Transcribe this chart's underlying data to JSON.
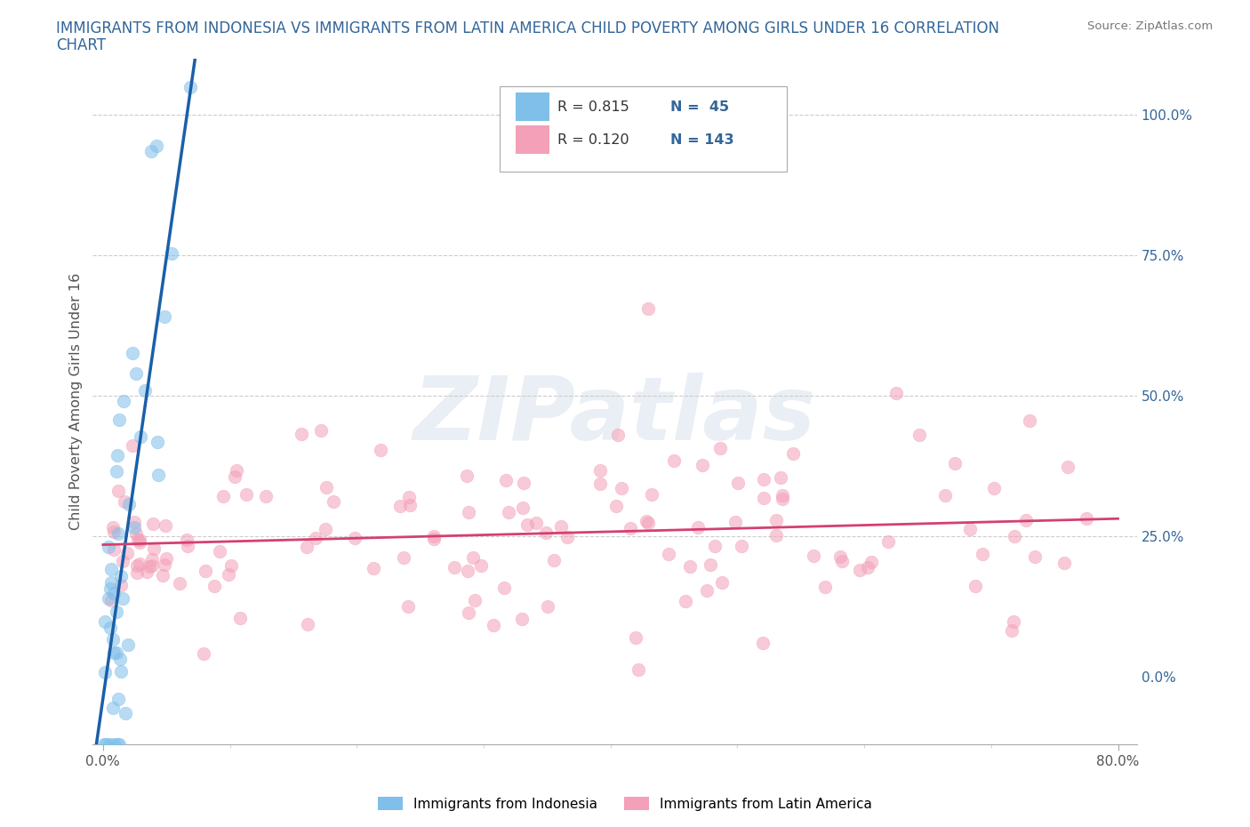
{
  "title": "IMMIGRANTS FROM INDONESIA VS IMMIGRANTS FROM LATIN AMERICA CHILD POVERTY AMONG GIRLS UNDER 16 CORRELATION\nCHART",
  "source": "Source: ZipAtlas.com",
  "ylabel": "Child Poverty Among Girls Under 16",
  "blue_color": "#7fbfea",
  "blue_line_color": "#1a5fa8",
  "pink_color": "#f4a0b8",
  "pink_line_color": "#d44070",
  "blue_R": 0.815,
  "blue_N": 45,
  "pink_R": 0.12,
  "pink_N": 143,
  "grid_color": "#cccccc",
  "background_color": "#ffffff",
  "title_color": "#336699",
  "axis_color": "#336699",
  "legend_label_blue": "Immigrants from Indonesia",
  "legend_label_pink": "Immigrants from Latin America",
  "watermark_text": "ZIPatlas"
}
